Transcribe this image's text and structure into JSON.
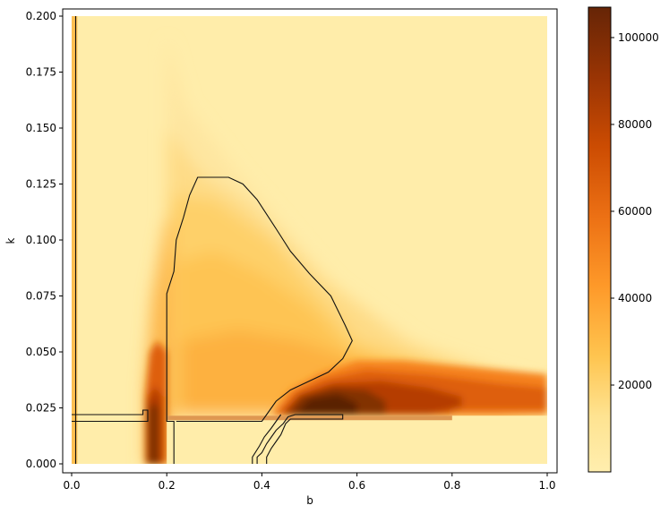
{
  "chart_data": {
    "type": "heatmap",
    "title": "",
    "xlabel": "b",
    "ylabel": "k",
    "xlim": [
      -0.01,
      1.02
    ],
    "ylim": [
      -0.007,
      0.203
    ],
    "x_ticks": [
      {
        "value": 0.0,
        "label": "0.0"
      },
      {
        "value": 0.2,
        "label": "0.2"
      },
      {
        "value": 0.4,
        "label": "0.4"
      },
      {
        "value": 0.6,
        "label": "0.6"
      },
      {
        "value": 0.8,
        "label": "0.8"
      },
      {
        "value": 1.0,
        "label": "1.0"
      }
    ],
    "y_ticks": [
      {
        "value": 0.0,
        "label": "0.000"
      },
      {
        "value": 0.025,
        "label": "0.025"
      },
      {
        "value": 0.05,
        "label": "0.050"
      },
      {
        "value": 0.075,
        "label": "0.075"
      },
      {
        "value": 0.1,
        "label": "0.100"
      },
      {
        "value": 0.125,
        "label": "0.125"
      },
      {
        "value": 0.15,
        "label": "0.150"
      },
      {
        "value": 0.175,
        "label": "0.175"
      },
      {
        "value": 0.2,
        "label": "0.200"
      }
    ],
    "colorbar": {
      "colormap": "YlOrBr",
      "range": [
        0,
        107000
      ],
      "ticks": [
        {
          "value": 20000,
          "label": "20000"
        },
        {
          "value": 40000,
          "label": "40000"
        },
        {
          "value": 60000,
          "label": "60000"
        },
        {
          "value": 80000,
          "label": "80000"
        },
        {
          "value": 100000,
          "label": "100000"
        }
      ]
    },
    "colors": [
      "#ffedaa",
      "#fed576",
      "#fdaa3f",
      "#f5811f",
      "#de5f0c",
      "#b53d04",
      "#823004",
      "#5a2005"
    ],
    "contours": [
      {
        "points": [
          [
            0.0085,
            0.0
          ],
          [
            0.0085,
            0.2
          ]
        ]
      },
      {
        "points": [
          [
            0.0,
            0.022
          ],
          [
            0.15,
            0.022
          ],
          [
            0.15,
            0.024
          ],
          [
            0.16,
            0.024
          ],
          [
            0.16,
            0.019
          ],
          [
            0.0,
            0.019
          ]
        ]
      },
      {
        "points": [
          [
            0.215,
            0.0
          ],
          [
            0.215,
            0.019
          ],
          [
            0.2,
            0.019
          ],
          [
            0.2,
            0.076
          ],
          [
            0.215,
            0.086
          ],
          [
            0.22,
            0.1
          ],
          [
            0.235,
            0.11
          ],
          [
            0.248,
            0.12
          ],
          [
            0.265,
            0.128
          ],
          [
            0.33,
            0.128
          ],
          [
            0.36,
            0.125
          ],
          [
            0.39,
            0.118
          ],
          [
            0.43,
            0.105
          ],
          [
            0.46,
            0.095
          ],
          [
            0.5,
            0.085
          ],
          [
            0.545,
            0.075
          ],
          [
            0.575,
            0.062
          ],
          [
            0.59,
            0.055
          ],
          [
            0.57,
            0.047
          ],
          [
            0.54,
            0.041
          ],
          [
            0.5,
            0.037
          ],
          [
            0.46,
            0.033
          ],
          [
            0.43,
            0.028
          ],
          [
            0.41,
            0.022
          ],
          [
            0.4,
            0.019
          ],
          [
            0.22,
            0.019
          ]
        ]
      },
      {
        "points": [
          [
            0.39,
            0.0
          ],
          [
            0.39,
            0.003
          ],
          [
            0.4,
            0.005
          ],
          [
            0.41,
            0.009
          ],
          [
            0.42,
            0.012
          ],
          [
            0.43,
            0.015
          ],
          [
            0.445,
            0.018
          ],
          [
            0.455,
            0.021
          ],
          [
            0.47,
            0.022
          ],
          [
            0.57,
            0.022
          ],
          [
            0.57,
            0.02
          ],
          [
            0.46,
            0.02
          ],
          [
            0.45,
            0.018
          ],
          [
            0.44,
            0.013
          ],
          [
            0.43,
            0.01
          ],
          [
            0.42,
            0.007
          ],
          [
            0.41,
            0.003
          ],
          [
            0.41,
            0.0
          ]
        ]
      },
      {
        "points": [
          [
            0.38,
            0.0
          ],
          [
            0.38,
            0.003
          ],
          [
            0.395,
            0.008
          ],
          [
            0.405,
            0.012
          ],
          [
            0.42,
            0.016
          ],
          [
            0.43,
            0.019
          ],
          [
            0.44,
            0.022
          ]
        ]
      }
    ]
  }
}
